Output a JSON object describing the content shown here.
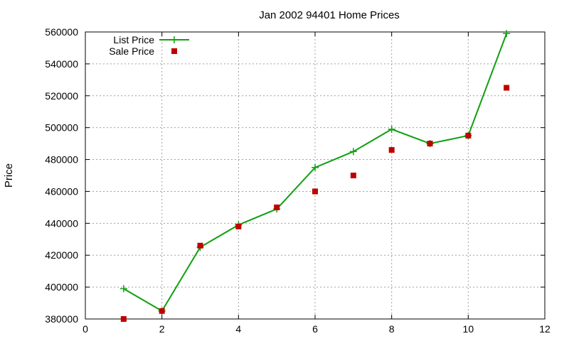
{
  "chart_data": {
    "type": "line",
    "title": "Jan 2002 94401 Home Prices",
    "xlabel": "",
    "ylabel": "Price",
    "xlim": [
      0,
      12
    ],
    "ylim": [
      380000,
      560000
    ],
    "xticks": [
      "0",
      "2",
      "4",
      "6",
      "8",
      "10",
      "12"
    ],
    "yticks": [
      "380000",
      "400000",
      "420000",
      "440000",
      "460000",
      "480000",
      "500000",
      "520000",
      "540000",
      "560000"
    ],
    "grid": true,
    "legend_position": "top-left",
    "series": [
      {
        "name": "List Price",
        "style": "line-with-plus-markers",
        "color": "#0fa00f",
        "x": [
          1,
          2,
          3,
          4,
          5,
          6,
          7,
          8,
          9,
          10,
          11
        ],
        "y": [
          399000,
          385000,
          425000,
          439000,
          449000,
          475000,
          485000,
          499000,
          490000,
          495000,
          559000
        ]
      },
      {
        "name": "Sale Price",
        "style": "square-markers",
        "color": "#c00000",
        "x": [
          1,
          2,
          3,
          4,
          5,
          6,
          7,
          8,
          9,
          10,
          11
        ],
        "y": [
          380000,
          385000,
          426000,
          438000,
          450000,
          460000,
          470000,
          486000,
          490000,
          495000,
          525000
        ]
      }
    ]
  }
}
